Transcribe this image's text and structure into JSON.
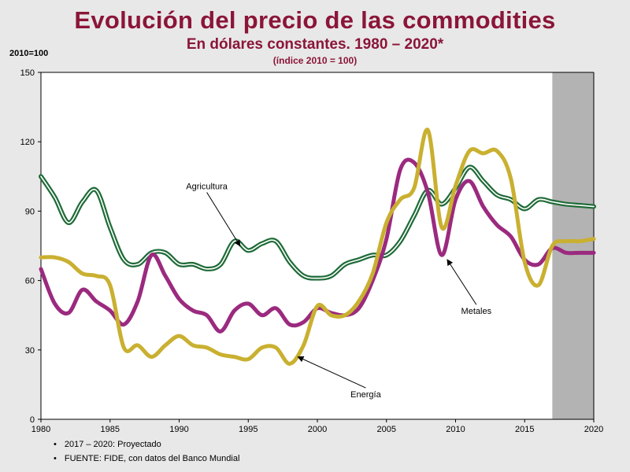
{
  "chart_data": {
    "type": "line",
    "title": "Evolución del precio de las commodities",
    "subtitle": "En dólares constantes. 1980 – 2020*",
    "subtitle2": "(índice 2010 = 100)",
    "ylabel": "2010=100",
    "xlim": [
      1980,
      2020
    ],
    "ylim": [
      0,
      150
    ],
    "xticks": [
      1980,
      1985,
      1990,
      1995,
      2000,
      2005,
      2010,
      2015,
      2020
    ],
    "yticks": [
      0,
      30,
      60,
      90,
      120,
      150
    ],
    "projection_start": 2017,
    "series": [
      {
        "name": "Agricultura",
        "color": "#1f6b38",
        "x": [
          1980,
          1981,
          1982,
          1983,
          1984,
          1985,
          1986,
          1987,
          1988,
          1989,
          1990,
          1991,
          1992,
          1993,
          1994,
          1995,
          1996,
          1997,
          1998,
          1999,
          2000,
          2001,
          2002,
          2003,
          2004,
          2005,
          2006,
          2007,
          2008,
          2009,
          2010,
          2011,
          2012,
          2013,
          2014,
          2015,
          2016,
          2017,
          2018,
          2019,
          2020
        ],
        "y": [
          105,
          96,
          85,
          94,
          99,
          83,
          69,
          67,
          72,
          72,
          67,
          67,
          65,
          67,
          77,
          73,
          76,
          77,
          68,
          62,
          61,
          62,
          67,
          69,
          71,
          71,
          77,
          88,
          99,
          93,
          100,
          109,
          103,
          97,
          95,
          91,
          95,
          94,
          93,
          92.5,
          92
        ]
      },
      {
        "name": "Metales",
        "color": "#9b2a7f",
        "x": [
          1980,
          1981,
          1982,
          1983,
          1984,
          1985,
          1986,
          1987,
          1988,
          1989,
          1990,
          1991,
          1992,
          1993,
          1994,
          1995,
          1996,
          1997,
          1998,
          1999,
          2000,
          2001,
          2002,
          2003,
          2004,
          2005,
          2006,
          2007,
          2008,
          2009,
          2010,
          2011,
          2012,
          2013,
          2014,
          2015,
          2016,
          2017,
          2018,
          2019,
          2020
        ],
        "y": [
          65,
          50,
          46,
          56,
          51,
          47,
          41,
          51,
          71,
          62,
          52,
          47,
          45,
          38,
          47,
          50,
          45,
          48,
          41,
          42,
          48,
          46,
          45,
          48,
          60,
          78,
          108,
          111,
          98,
          71,
          95,
          103,
          92,
          84,
          79,
          69,
          67,
          74,
          72,
          72,
          72
        ]
      },
      {
        "name": "Energía",
        "color": "#c9b030",
        "x": [
          1980,
          1981,
          1982,
          1983,
          1984,
          1985,
          1986,
          1987,
          1988,
          1989,
          1990,
          1991,
          1992,
          1993,
          1994,
          1995,
          1996,
          1997,
          1998,
          1999,
          2000,
          2001,
          2002,
          2003,
          2004,
          2005,
          2006,
          2007,
          2008,
          2009,
          2010,
          2011,
          2012,
          2013,
          2014,
          2015,
          2016,
          2017,
          2018,
          2019,
          2020
        ],
        "y": [
          70,
          70,
          68,
          63,
          62,
          58,
          31,
          32,
          27,
          32,
          36,
          32,
          31,
          28,
          27,
          26,
          31,
          31,
          24,
          32,
          49,
          45,
          45,
          51,
          63,
          85,
          95,
          100,
          125,
          83,
          101,
          116,
          115,
          116,
          104,
          68,
          58,
          75,
          77,
          77,
          78
        ]
      }
    ],
    "annotations": [
      {
        "text": "Agricultura",
        "x": 1992.0,
        "y": 99.5,
        "arrow_to": [
          1994.4,
          75
        ]
      },
      {
        "text": "Metales",
        "x": 2011.5,
        "y": 45.5,
        "arrow_to": [
          2009.4,
          69
        ]
      },
      {
        "text": "Energía",
        "x": 2003.5,
        "y": 9.5,
        "arrow_to": [
          1998.6,
          27
        ]
      }
    ]
  },
  "notes": [
    "2017 – 2020: Proyectado",
    "FUENTE: FIDE, con datos del Banco Mundial"
  ]
}
